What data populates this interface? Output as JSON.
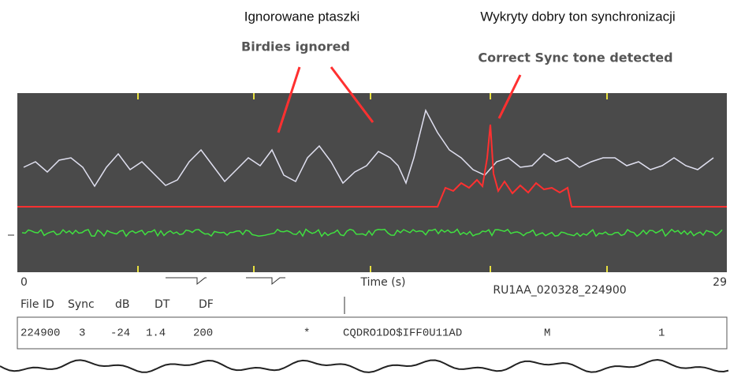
{
  "annotations": {
    "birdies_pl": "Ignorowane ptaszki",
    "birdies_en": "Birdies ignored",
    "sync_pl": "Wykryty dobry ton synchronizacji",
    "sync_en": "Correct Sync tone detected"
  },
  "plot": {
    "x_start": "0",
    "x_label": "Time (s)",
    "x_end": "29",
    "file_name": "RU1AA_020328_224900"
  },
  "table": {
    "header": [
      "File ID",
      "Sync",
      "dB",
      "DT",
      "DF"
    ],
    "rows": [
      [
        "224900",
        "3",
        "-24",
        "1.4",
        "200",
        "*",
        "CQDRO1DO$IFF0U11AD",
        "M",
        "1"
      ]
    ]
  }
}
